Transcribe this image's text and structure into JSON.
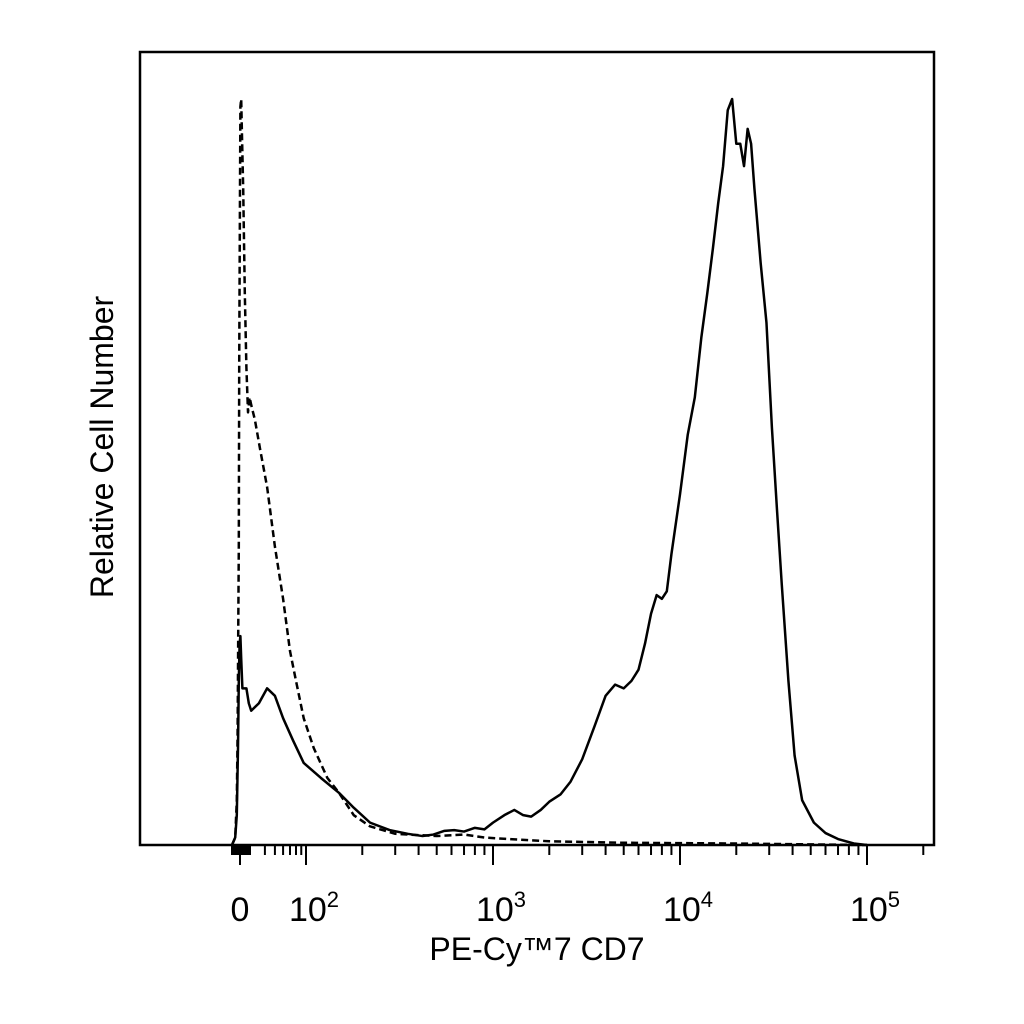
{
  "chart_data": {
    "type": "line",
    "title": "",
    "xlabel": "PE-Cy™7 CD7",
    "ylabel": "Relative Cell Number",
    "x_scale": "logicle",
    "xlim": [
      -20,
      250000
    ],
    "ylim": [
      0,
      100
    ],
    "grid": false,
    "legend": "none",
    "x_tick_labels": [
      {
        "value": 0,
        "base": "0",
        "exp": ""
      },
      {
        "value": 100,
        "base": "10",
        "exp": "2"
      },
      {
        "value": 1000,
        "base": "10",
        "exp": "3"
      },
      {
        "value": 10000,
        "base": "10",
        "exp": "4"
      },
      {
        "value": 100000,
        "base": "10",
        "exp": "5"
      }
    ],
    "series": [
      {
        "style": "solid",
        "color": "#000000",
        "points": [
          [
            -20,
            0
          ],
          [
            -12,
            1
          ],
          [
            -8,
            4
          ],
          [
            -5,
            13
          ],
          [
            -3,
            22
          ],
          [
            -1,
            27
          ],
          [
            1,
            28
          ],
          [
            3,
            25
          ],
          [
            6,
            21
          ],
          [
            10,
            21
          ],
          [
            16,
            21
          ],
          [
            22,
            19
          ],
          [
            28,
            18
          ],
          [
            35,
            19
          ],
          [
            42,
            21
          ],
          [
            50,
            20
          ],
          [
            60,
            17
          ],
          [
            75,
            14
          ],
          [
            95,
            11
          ],
          [
            120,
            9
          ],
          [
            150,
            7
          ],
          [
            180,
            5
          ],
          [
            220,
            3
          ],
          [
            280,
            2
          ],
          [
            350,
            1.5
          ],
          [
            420,
            1.2
          ],
          [
            480,
            1.4
          ],
          [
            550,
            1.9
          ],
          [
            620,
            2
          ],
          [
            700,
            1.8
          ],
          [
            800,
            2.3
          ],
          [
            900,
            2.1
          ],
          [
            1000,
            3
          ],
          [
            1150,
            4
          ],
          [
            1300,
            4.7
          ],
          [
            1450,
            4
          ],
          [
            1600,
            3.8
          ],
          [
            1800,
            4.7
          ],
          [
            2000,
            5.8
          ],
          [
            2300,
            6.8
          ],
          [
            2600,
            8.5
          ],
          [
            3000,
            11.5
          ],
          [
            3500,
            16
          ],
          [
            4000,
            20
          ],
          [
            4500,
            21.5
          ],
          [
            5000,
            21
          ],
          [
            5500,
            22
          ],
          [
            6000,
            23.5
          ],
          [
            6500,
            27
          ],
          [
            7000,
            31
          ],
          [
            7500,
            33.5
          ],
          [
            8000,
            33
          ],
          [
            8500,
            34
          ],
          [
            9000,
            39
          ],
          [
            10000,
            47
          ],
          [
            11000,
            55
          ],
          [
            12000,
            60
          ],
          [
            13000,
            68
          ],
          [
            14000,
            74
          ],
          [
            15000,
            80
          ],
          [
            16000,
            86
          ],
          [
            17000,
            91
          ],
          [
            18000,
            98.5
          ],
          [
            19000,
            100
          ],
          [
            20000,
            94
          ],
          [
            21000,
            94
          ],
          [
            22000,
            91
          ],
          [
            23000,
            96
          ],
          [
            24000,
            94
          ],
          [
            25000,
            88
          ],
          [
            27000,
            78
          ],
          [
            29000,
            70
          ],
          [
            31000,
            56
          ],
          [
            33000,
            45
          ],
          [
            35000,
            35
          ],
          [
            38000,
            22
          ],
          [
            41000,
            12
          ],
          [
            45000,
            6
          ],
          [
            52000,
            3
          ],
          [
            60000,
            1.6
          ],
          [
            70000,
            0.8
          ],
          [
            85000,
            0.2
          ],
          [
            100000,
            0
          ]
        ]
      },
      {
        "style": "dashed",
        "color": "#000000",
        "points": [
          [
            -20,
            0
          ],
          [
            -12,
            1
          ],
          [
            -8,
            6
          ],
          [
            -6,
            15
          ],
          [
            -4,
            32
          ],
          [
            -3,
            40
          ],
          [
            -2,
            64
          ],
          [
            -1,
            76
          ],
          [
            0,
            88
          ],
          [
            1,
            99
          ],
          [
            3,
            100
          ],
          [
            5,
            95
          ],
          [
            8,
            88
          ],
          [
            12,
            74
          ],
          [
            16,
            64
          ],
          [
            20,
            58
          ],
          [
            24,
            60
          ],
          [
            28,
            59
          ],
          [
            32,
            57
          ],
          [
            36,
            53
          ],
          [
            42,
            48
          ],
          [
            50,
            40
          ],
          [
            60,
            33
          ],
          [
            70,
            26
          ],
          [
            80,
            22
          ],
          [
            95,
            17
          ],
          [
            110,
            13
          ],
          [
            130,
            9
          ],
          [
            150,
            7
          ],
          [
            180,
            4
          ],
          [
            220,
            2.5
          ],
          [
            300,
            1.5
          ],
          [
            500,
            1.2
          ],
          [
            700,
            1.4
          ],
          [
            900,
            1
          ],
          [
            1200,
            0.8
          ],
          [
            2000,
            0.5
          ],
          [
            5000,
            0.3
          ],
          [
            20000,
            0.2
          ],
          [
            100000,
            0
          ]
        ]
      }
    ]
  }
}
